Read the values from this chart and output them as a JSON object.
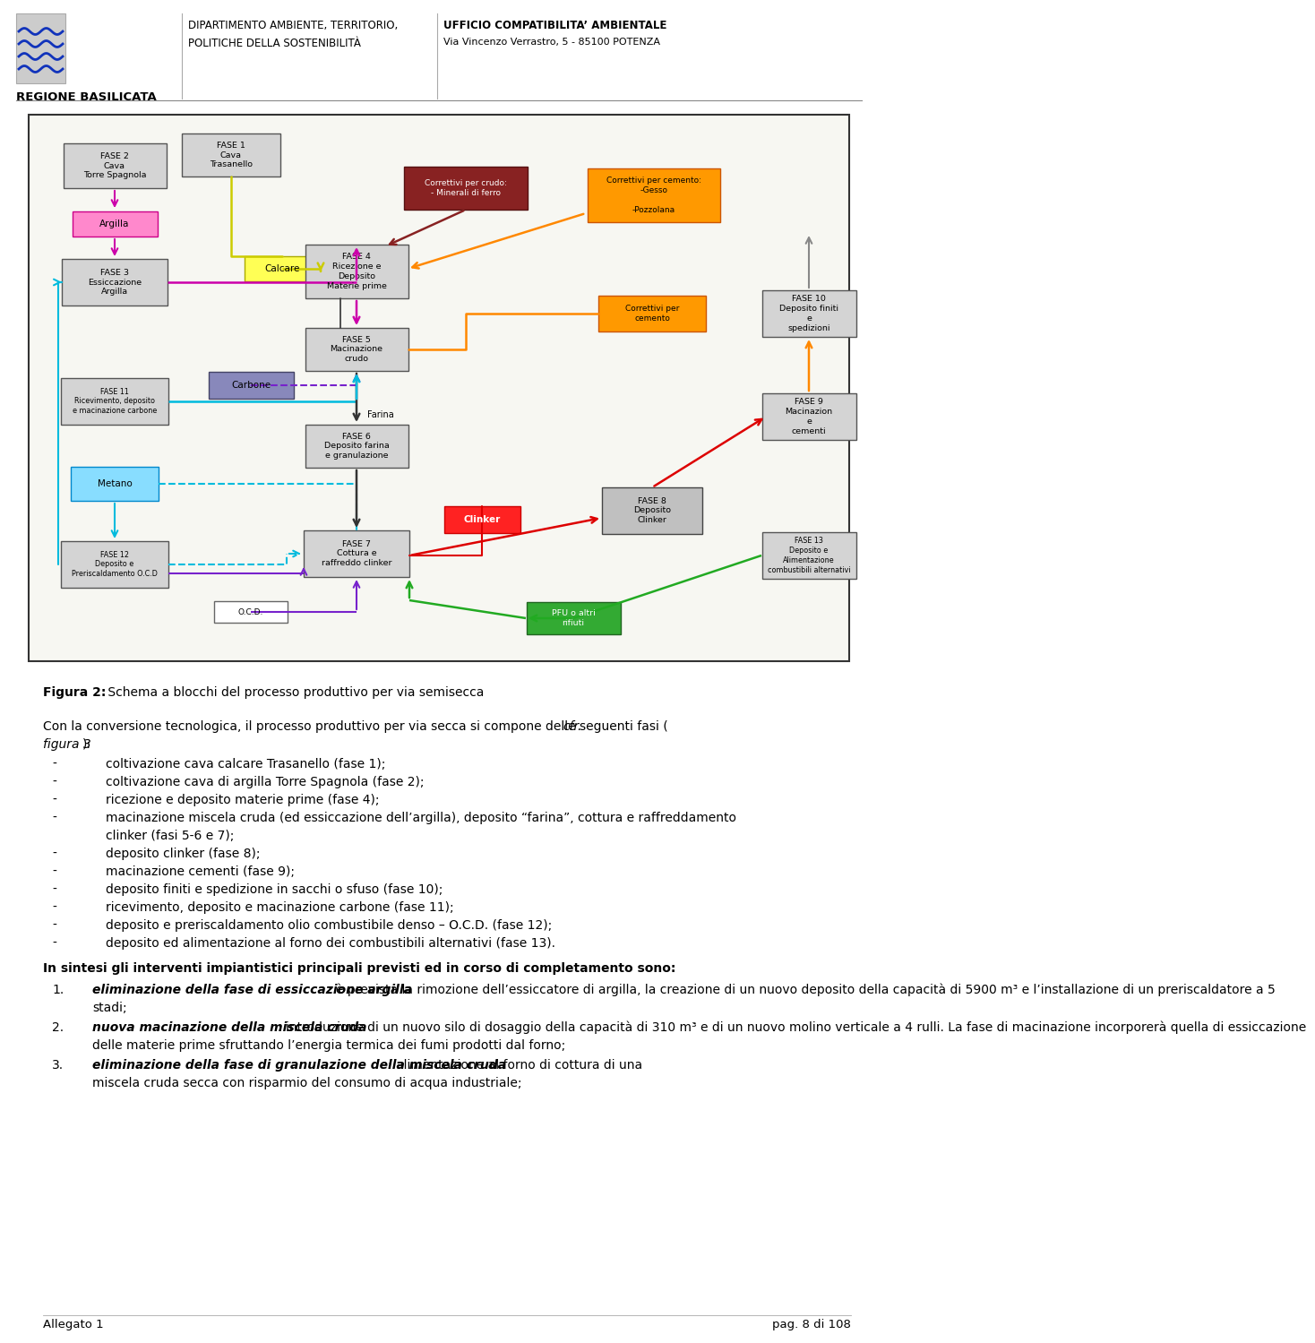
{
  "page_width": 9.6,
  "page_height": 14.79,
  "bg_color": "#ffffff",
  "header_logo_text": "REGIONE BASILICATA",
  "header_center": "DIPARTIMENTO AMBIENTE, TERRITORIO,\nPOLITICHE DELLA SOSTENIBILITÀ",
  "header_right_bold": "UFFICIO COMPATIBILITA’ AMBIENTALE",
  "header_right_normal": "Via Vincenzo Verrastro, 5 - 85100 POTENZA",
  "footer_left": "Allegato 1",
  "footer_right": "pag. 8 di 108",
  "fig_caption_bold": "Figura 2:",
  "fig_caption_normal": " Schema a blocchi del processo produttivo per via semisecca",
  "intro_part1": "Con la conversione tecnologica, il processo produttivo per via secca si compone delle seguenti fasi (",
  "intro_cfr_italic": "cfr.",
  "intro_line2_italic": "figura 3",
  "intro_line2_rest": "):",
  "bullets": [
    "coltivazione cava calcare Trasanello (fase 1);",
    "coltivazione cava di argilla Torre Spagnola (fase 2);",
    "ricezione e deposito materie prime (fase 4);",
    [
      "macinazione miscela cruda (ed essiccazione dell’argilla), deposito “farina”, cottura e raffreddamento",
      "clinker (fasi 5-6 e 7);"
    ],
    "deposito clinker (fase 8);",
    "macinazione cementi (fase 9);",
    "deposito finiti e spedizione in sacchi o sfuso (fase 10);",
    "ricevimento, deposito e macinazione carbone (fase 11);",
    "deposito e preriscaldamento olio combustibile denso – O.C.D. (fase 12);",
    "deposito ed alimentazione al forno dei combustibili alternativi (fase 13)."
  ],
  "synthesis_bold": "In sintesi gli interventi impiantistici principali previsti ed in corso di completamento sono:",
  "numbered": [
    {
      "ib": "eliminazione della fase di essiccazione argilla",
      "lines": [
        ": è prevista la rimozione dell’essiccatore di argilla, la creazione di un nuovo deposito della capacità di 5900 m³ e l’installazione di un preriscaldatore a 5",
        "stadi;"
      ]
    },
    {
      "ib": "nuova macinazione della miscela cruda",
      "lines": [
        ": introduzione di un nuovo silo di dosaggio della capacità di 310 m³ e di un nuovo molino verticale a 4 rulli. La fase di macinazione incorporerà quella di essiccazione",
        "delle materie prime sfruttando l’energia termica dei fumi prodotti dal forno;"
      ]
    },
    {
      "ib": "eliminazione della fase di granulazione della miscela cruda",
      "lines": [
        ": alimentazione al forno di cottura di una",
        "miscela cruda secca con risparmio del consumo di acqua industriale;"
      ]
    }
  ]
}
